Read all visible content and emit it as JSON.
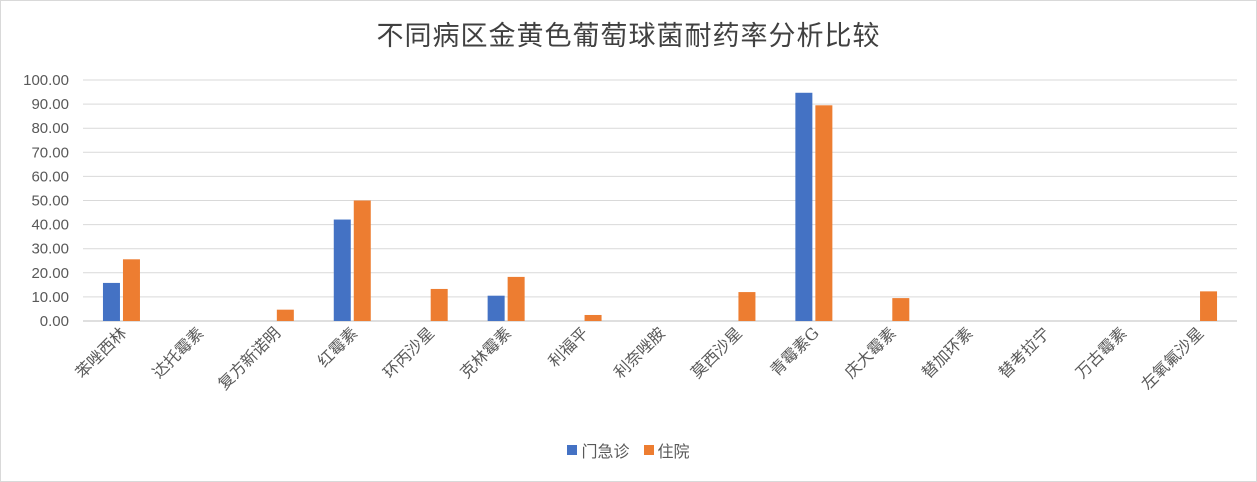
{
  "chart_data": {
    "type": "bar",
    "title": "不同病区金黄色葡萄球菌耐药率分析比较",
    "xlabel": "",
    "ylabel": "",
    "ylim": [
      0,
      100
    ],
    "ytick_step": 10,
    "ytick_labels": [
      "0.00",
      "10.00",
      "20.00",
      "30.00",
      "40.00",
      "50.00",
      "60.00",
      "70.00",
      "80.00",
      "90.00",
      "100.00"
    ],
    "grid": true,
    "legend_position": "bottom",
    "categories": [
      "苯唑西林",
      "达托霉素",
      "复方新诺明",
      "红霉素",
      "环丙沙星",
      "克林霉素",
      "利福平",
      "利奈唑胺",
      "莫西沙星",
      "青霉素G",
      "庆大霉素",
      "替加环素",
      "替考拉宁",
      "万古霉素",
      "左氧氟沙星"
    ],
    "series": [
      {
        "name": "门急诊",
        "color": "#4472C4",
        "values": [
          15.8,
          0,
          0,
          42.1,
          0,
          10.5,
          0,
          0,
          0,
          94.7,
          0,
          0,
          0,
          0,
          0
        ]
      },
      {
        "name": "住院",
        "color": "#ED7D31",
        "values": [
          25.6,
          0,
          4.7,
          50.0,
          13.3,
          18.3,
          2.5,
          0,
          12.0,
          89.5,
          9.5,
          0,
          0,
          0,
          12.3
        ]
      }
    ]
  }
}
